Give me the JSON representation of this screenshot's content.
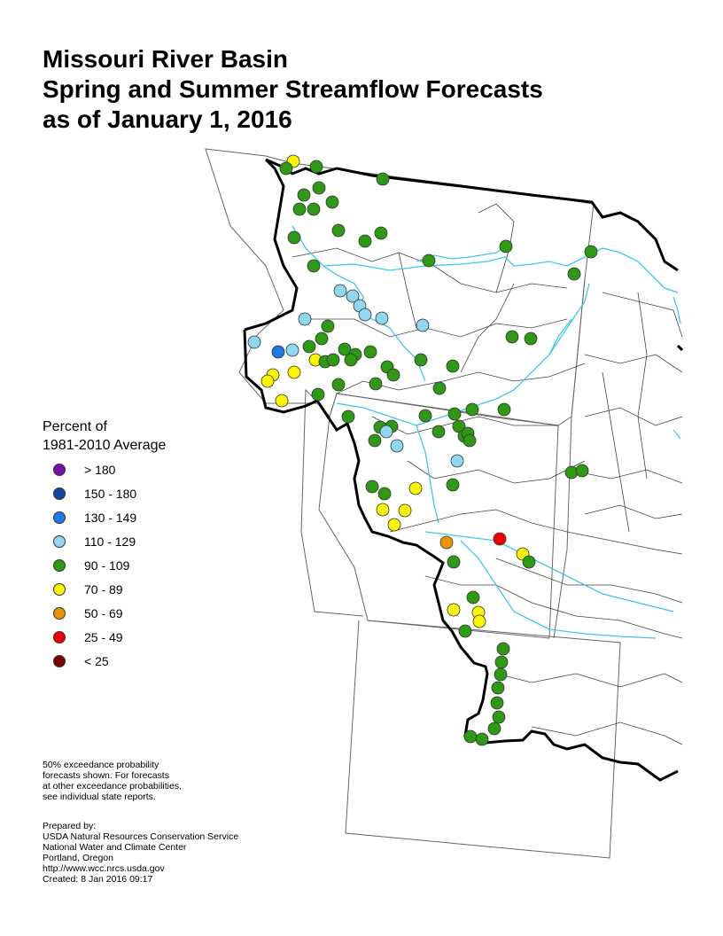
{
  "title": {
    "line1": "Missouri River Basin",
    "line2": "Spring and Summer Streamflow Forecasts",
    "line3": "as of January 1, 2016"
  },
  "legend": {
    "title_line1": "Percent of",
    "title_line2": "1981-2010 Average",
    "items": [
      {
        "label": "> 180",
        "color": "#7a0fa8"
      },
      {
        "label": "150 - 180",
        "color": "#0b4aa0"
      },
      {
        "label": "130 - 149",
        "color": "#1f78e6"
      },
      {
        "label": "110 - 129",
        "color": "#8fd8f2"
      },
      {
        "label": "90 - 109",
        "color": "#2e9a14"
      },
      {
        "label": "70 - 89",
        "color": "#fbf600"
      },
      {
        "label": "50 - 69",
        "color": "#e89500"
      },
      {
        "label": "25 - 49",
        "color": "#f00000"
      },
      {
        "label": "< 25",
        "color": "#7d0000"
      }
    ]
  },
  "note": {
    "line1": "50% exceedance probability",
    "line2": "forecasts shown.  For forecasts",
    "line3": "at other exceedance probabilities,",
    "line4": "see individual state reports."
  },
  "prepared": {
    "line1": "Prepared by:",
    "line2": "USDA Natural Resources Conservation Service",
    "line3": "National Water and Climate Center",
    "line4": "Portland, Oregon",
    "line5": "http://www.wcc.nrcs.usda.gov",
    "line6": "Created:    8 Jan 2016   09:17"
  },
  "map": {
    "river_color": "#3fc6ee",
    "basin_outline_color": "#000000",
    "state_line_color": "#555555"
  }
}
